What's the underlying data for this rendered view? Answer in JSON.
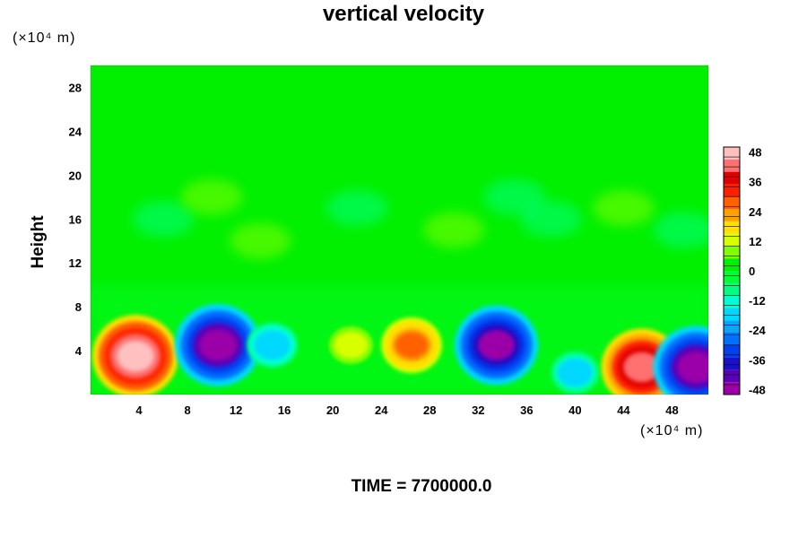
{
  "chart_data": {
    "type": "heatmap",
    "title": "vertical velocity",
    "ylabel": "Height",
    "x_unit_label": "(×10⁴ m)",
    "y_unit_label": "(×10⁴ m)",
    "xlim": [
      0,
      51
    ],
    "ylim": [
      0,
      30
    ],
    "x_ticks": [
      4,
      8,
      12,
      16,
      20,
      24,
      28,
      32,
      36,
      40,
      44,
      48
    ],
    "y_ticks": [
      4,
      8,
      12,
      16,
      20,
      24,
      28
    ],
    "colorbar": {
      "range": [
        -50,
        50
      ],
      "ticks": [
        48,
        36,
        24,
        12,
        0,
        -12,
        -24,
        -36,
        -48
      ],
      "colors": [
        "#9b00a8",
        "#5a00b8",
        "#1a10c8",
        "#0040f0",
        "#0070ff",
        "#00a8ff",
        "#00d8ff",
        "#00ffd0",
        "#00ff80",
        "#00ff30",
        "#00f000",
        "#80ff00",
        "#d8ff00",
        "#ffe000",
        "#ffa000",
        "#ff6000",
        "#ff2000",
        "#e00000",
        "#ff7070",
        "#ffc0c0"
      ]
    },
    "features": [
      {
        "x": 3.7,
        "y": 3.5,
        "value": 48
      },
      {
        "x": 10.5,
        "y": 4.5,
        "value": -48
      },
      {
        "x": 15.0,
        "y": 4.5,
        "value": -20
      },
      {
        "x": 21.5,
        "y": 4.5,
        "value": 14
      },
      {
        "x": 26.5,
        "y": 4.5,
        "value": 28
      },
      {
        "x": 33.5,
        "y": 4.5,
        "value": -46
      },
      {
        "x": 40.0,
        "y": 2.0,
        "value": -18
      },
      {
        "x": 45.5,
        "y": 2.5,
        "value": 44
      },
      {
        "x": 50.0,
        "y": 2.5,
        "value": -48
      }
    ]
  },
  "footer": {
    "time_label": "TIME =",
    "time_value": "7700000.0"
  }
}
